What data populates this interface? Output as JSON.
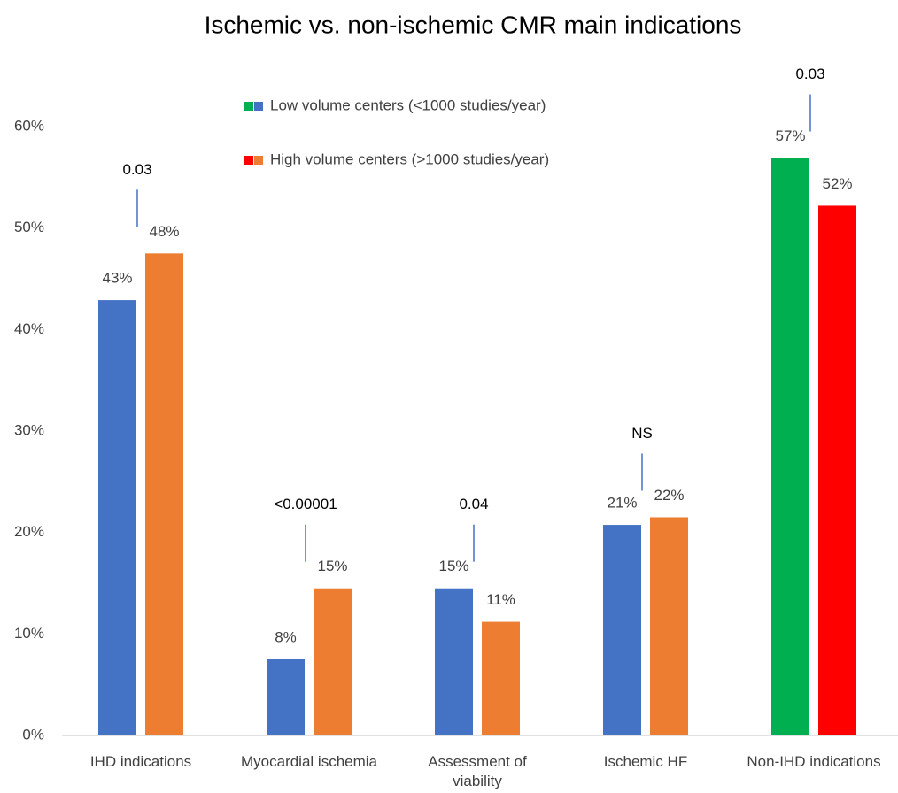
{
  "chart_data": {
    "type": "bar",
    "title": "Ischemic vs. non-ischemic CMR main indications",
    "categories": [
      "IHD indications",
      "Myocardial ischemia",
      "Assessment of viability",
      "Ischemic HF",
      "Non-IHD indications"
    ],
    "group_annotations": [
      "0.03",
      "<0.00001",
      "0.04",
      "NS",
      "0.03"
    ],
    "series": [
      {
        "name": "Low volume centers (<1000 studies/year)",
        "legend_colors": [
          "#00b050",
          "#4472c4"
        ],
        "colors": [
          "#4472c4",
          "#4472c4",
          "#4472c4",
          "#4472c4",
          "#00b050"
        ],
        "values": [
          42.9,
          7.5,
          14.5,
          20.75,
          56.9
        ],
        "value_labels": [
          "43%",
          "8%",
          "15%",
          "21%",
          "57%"
        ]
      },
      {
        "name": "High volume centers (>1000 studies/year)",
        "legend_colors": [
          "#ff0000",
          "#ed7d31"
        ],
        "colors": [
          "#ed7d31",
          "#ed7d31",
          "#ed7d31",
          "#ed7d31",
          "#ff0000"
        ],
        "values": [
          47.5,
          14.5,
          11.2,
          21.5,
          52.2
        ],
        "value_labels": [
          "48%",
          "15%",
          "11%",
          "22%",
          "52%"
        ]
      }
    ],
    "ylim": [
      0,
      60
    ],
    "yticks": [
      {
        "value": 0,
        "label": "0%"
      },
      {
        "value": 10,
        "label": "10%"
      },
      {
        "value": 20,
        "label": "20%"
      },
      {
        "value": 30,
        "label": "30%"
      },
      {
        "value": 40,
        "label": "40%"
      },
      {
        "value": 50,
        "label": "50%"
      },
      {
        "value": 60,
        "label": "60%"
      }
    ],
    "grid": false
  }
}
